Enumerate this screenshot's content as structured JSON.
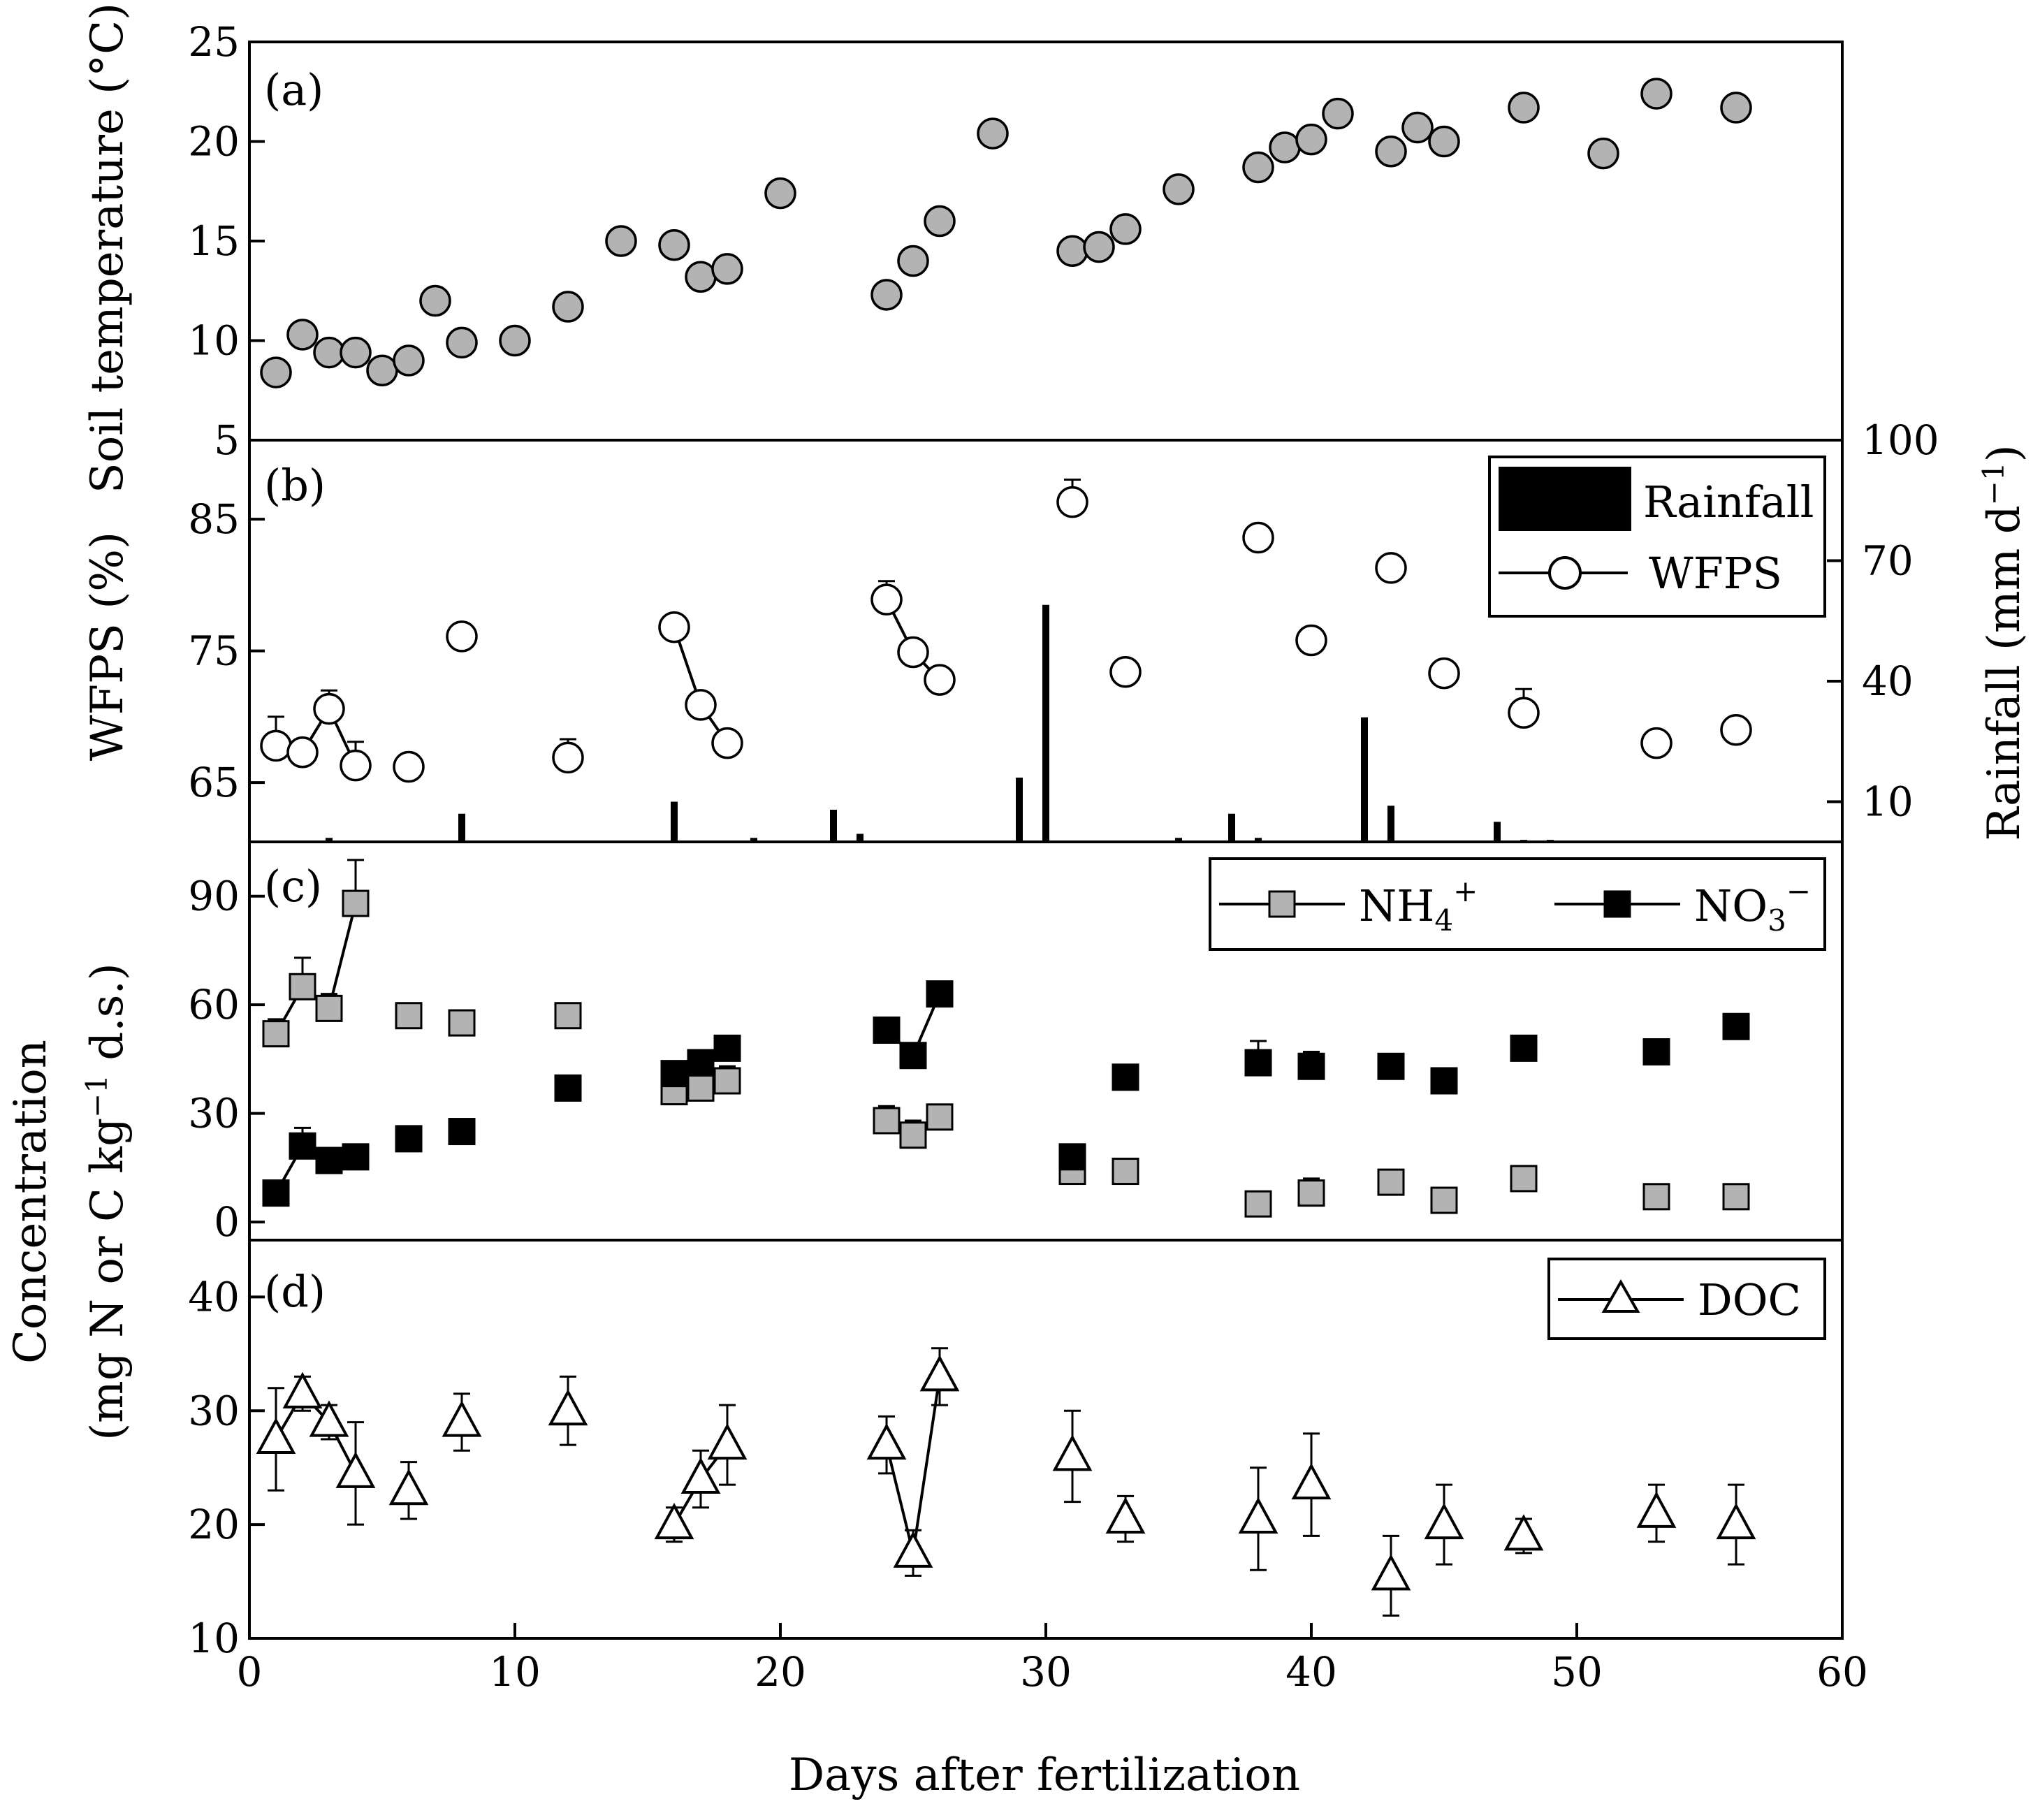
{
  "chart_data": [
    {
      "panel": "a",
      "panel_label": "(a)",
      "type": "scatter",
      "ylabel": "Soil temperature (°C)",
      "ylim": [
        5,
        25
      ],
      "yticks": [
        5,
        10,
        15,
        20,
        25
      ],
      "xlim": [
        0,
        60
      ],
      "series": [
        {
          "name": "Soil temperature",
          "marker": "circle",
          "fill": "#b3b3b3",
          "connected": false,
          "x": [
            1,
            2,
            3,
            4,
            5,
            6,
            7,
            8,
            10,
            12,
            14,
            16,
            17,
            18,
            20,
            24,
            25,
            26,
            28,
            31,
            32,
            33,
            35,
            38,
            39,
            40,
            41,
            43,
            44,
            45,
            48,
            51,
            53,
            56
          ],
          "y": [
            8.4,
            10.3,
            9.4,
            9.4,
            8.5,
            9.0,
            12.0,
            9.9,
            10.0,
            11.7,
            15.0,
            14.8,
            13.2,
            13.6,
            17.4,
            12.3,
            14.0,
            16.0,
            20.4,
            14.5,
            14.7,
            15.6,
            17.6,
            18.7,
            19.7,
            20.1,
            21.4,
            19.5,
            20.7,
            20.0,
            21.7,
            19.4,
            22.4,
            21.7
          ]
        }
      ]
    },
    {
      "panel": "b",
      "panel_label": "(b)",
      "type": "scatter+bar",
      "ylabel": "WFPS (%)",
      "ylim": [
        60.5,
        91
      ],
      "yticks": [
        65,
        75,
        85
      ],
      "y2label": "Rainfall (mm d⁻¹)",
      "y2label_text": "Rainfall (mm d",
      "y2label_sup": "−1",
      "y2label_end": ")",
      "y2lim": [
        0,
        100
      ],
      "y2ticks": [
        10,
        40,
        70,
        100
      ],
      "legend": [
        {
          "label": "Rainfall",
          "symbol": "bar"
        },
        {
          "label": "WFPS",
          "symbol": "line-open-circle"
        }
      ],
      "rainfall": {
        "days": [
          3,
          8,
          16,
          19,
          22,
          23,
          29,
          30,
          35,
          37,
          38,
          42,
          43,
          47,
          48,
          49
        ],
        "mm": [
          1,
          7,
          10,
          1,
          8,
          2,
          16,
          59,
          1,
          7,
          1,
          31,
          9,
          5,
          0.5,
          0.5
        ]
      },
      "series": [
        {
          "name": "WFPS",
          "marker": "open-circle",
          "x": [
            1,
            2,
            3,
            4,
            6,
            8,
            12,
            16,
            17,
            18,
            24,
            25,
            26,
            31,
            33,
            38,
            40,
            43,
            45,
            48,
            53,
            56
          ],
          "y": [
            67.8,
            67.3,
            70.6,
            66.3,
            66.2,
            76.1,
            66.9,
            76.8,
            70.9,
            68.0,
            78.9,
            74.9,
            72.8,
            86.3,
            73.4,
            83.6,
            75.8,
            81.3,
            73.3,
            70.3,
            68.0,
            69.0
          ],
          "err": [
            2.2,
            0.8,
            1.4,
            1.8,
            0.8,
            0.6,
            1.4,
            0.5,
            0.8,
            0.7,
            1.4,
            0.7,
            0.8,
            1.7,
            0.8,
            0.7,
            0.6,
            0.4,
            0.6,
            1.8,
            0.6,
            0.7
          ],
          "segments": [
            [
              1,
              2,
              3,
              4
            ],
            [
              16,
              17,
              18
            ],
            [
              24,
              25,
              26
            ]
          ]
        }
      ]
    },
    {
      "panel": "c",
      "panel_label": "(c)",
      "type": "scatter",
      "ylim": [
        -5,
        105
      ],
      "yticks": [
        0,
        30,
        60,
        90
      ],
      "legend": [
        {
          "label": "NH",
          "sub": "4",
          "sup": "+",
          "symbol": "line-gray-square"
        },
        {
          "label": "NO",
          "sub": "3",
          "sup": "−",
          "symbol": "line-black-square"
        }
      ],
      "series": [
        {
          "name": "NH4+",
          "marker": "square",
          "fill": "#b3b3b3",
          "x": [
            1,
            2,
            3,
            4,
            6,
            8,
            12,
            16,
            17,
            18,
            24,
            25,
            26,
            31,
            33,
            38,
            40,
            43,
            45,
            48,
            53,
            56
          ],
          "y": [
            52,
            65,
            59,
            88,
            57,
            55,
            57,
            36,
            37,
            39,
            28,
            24,
            29,
            14,
            14,
            5,
            8,
            11,
            6,
            12,
            7,
            7
          ],
          "err": [
            4,
            8,
            4,
            12,
            3,
            3,
            3,
            6,
            5,
            4,
            4,
            4,
            3,
            3,
            3,
            2,
            4,
            3,
            2,
            3,
            2,
            2
          ],
          "segments": [
            [
              1,
              2,
              3,
              4
            ]
          ]
        },
        {
          "name": "NO3-",
          "marker": "square",
          "fill": "#000000",
          "x": [
            1,
            2,
            3,
            4,
            6,
            8,
            12,
            16,
            17,
            18,
            24,
            25,
            26,
            31,
            33,
            38,
            40,
            43,
            45,
            48,
            53,
            56
          ],
          "y": [
            8,
            21,
            17,
            18,
            23,
            25,
            37,
            41,
            44,
            48,
            53,
            46,
            63,
            18,
            40,
            44,
            43,
            43,
            39,
            48,
            47,
            54
          ],
          "err": [
            3,
            5,
            3,
            2,
            2,
            2,
            2,
            3,
            3,
            2,
            2,
            3,
            2,
            2,
            2,
            6,
            4,
            2,
            2,
            2,
            2,
            3
          ],
          "segments": [
            [
              1,
              2,
              3,
              4
            ],
            [
              16,
              17,
              18
            ],
            [
              24,
              25,
              26
            ]
          ]
        }
      ]
    },
    {
      "panel": "d",
      "panel_label": "(d)",
      "type": "scatter",
      "ylim": [
        10,
        45
      ],
      "yticks": [
        10,
        20,
        30,
        40
      ],
      "xlim": [
        0,
        60
      ],
      "xticks": [
        0,
        10,
        20,
        30,
        40,
        50,
        60
      ],
      "xlabel": "Days after fertilization",
      "legend": [
        {
          "label": "DOC",
          "symbol": "line-open-triangle"
        }
      ],
      "series": [
        {
          "name": "DOC",
          "marker": "open-triangle",
          "x": [
            1,
            2,
            3,
            4,
            6,
            8,
            12,
            16,
            17,
            18,
            24,
            25,
            26,
            31,
            33,
            38,
            40,
            43,
            45,
            48,
            53,
            56
          ],
          "y": [
            27.5,
            31.5,
            29.0,
            24.5,
            23.0,
            29.0,
            30.0,
            20.0,
            24.0,
            27.0,
            27.0,
            17.5,
            33.0,
            26.0,
            20.5,
            20.5,
            23.5,
            15.5,
            20.0,
            19.0,
            21.0,
            20.0
          ],
          "err": [
            4.5,
            1.5,
            1.5,
            4.5,
            2.5,
            2.5,
            3.0,
            1.5,
            2.5,
            3.5,
            2.5,
            2.0,
            2.5,
            4.0,
            2.0,
            4.5,
            4.5,
            3.5,
            3.5,
            1.5,
            2.5,
            3.5
          ],
          "segments": [
            [
              1,
              2,
              3,
              4
            ],
            [
              16,
              17,
              18
            ],
            [
              24,
              25,
              26
            ]
          ]
        }
      ]
    }
  ],
  "shared_ylabel_line1": "Concentration",
  "shared_ylabel_line2_a": "(mg N or C kg",
  "shared_ylabel_line2_sup": "−1",
  "shared_ylabel_line2_b": " d.s.)"
}
